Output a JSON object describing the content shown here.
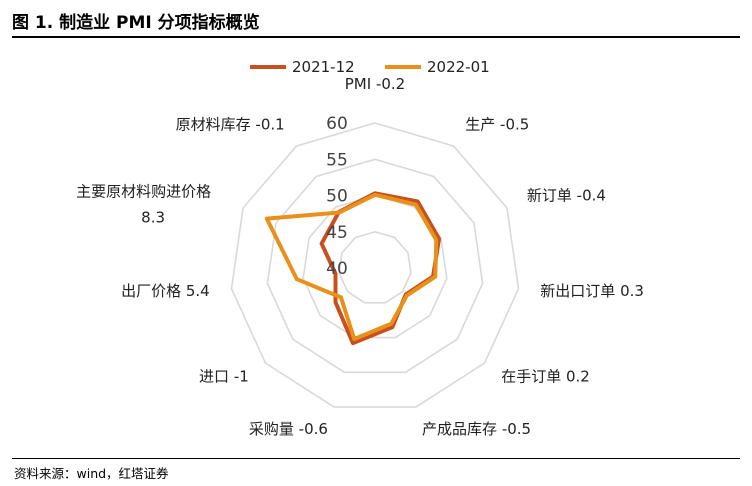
{
  "title": "图 1. 制造业 PMI 分项指标概览",
  "source": "资料来源：wind，红塔证券",
  "colors": {
    "series_2021_12": "#C8501E",
    "series_2022_01": "#E8901A",
    "grid": "#d9d9d9",
    "axis": "#bfbfbf"
  },
  "chart_data": {
    "type": "radar",
    "title": "",
    "rlim": [
      40,
      60
    ],
    "rticks": [
      40,
      45,
      50,
      55,
      60
    ],
    "grid": true,
    "legend_position": "top",
    "categories": [
      "PMI -0.2",
      "生产 -0.5",
      "新订单 -0.4",
      "新出口订单 0.3",
      "在手订单 0.2",
      "产成品库存 -0.5",
      "采购量 -0.6",
      "进口 -1",
      "出厂价格 5.4",
      "主要原材料购进价格 8.3",
      "原材料库存 -0.1"
    ],
    "series": [
      {
        "name": "2021-12",
        "color": "#C8501E",
        "values": [
          50.3,
          50.9,
          49.7,
          48.1,
          45.6,
          48.5,
          50.8,
          47.2,
          45.5,
          48.1,
          49.2
        ]
      },
      {
        "name": "2022-01",
        "color": "#E8901A",
        "values": [
          50.1,
          50.4,
          49.3,
          48.4,
          45.8,
          48.0,
          50.2,
          46.2,
          50.9,
          56.4,
          49.1
        ]
      }
    ]
  }
}
